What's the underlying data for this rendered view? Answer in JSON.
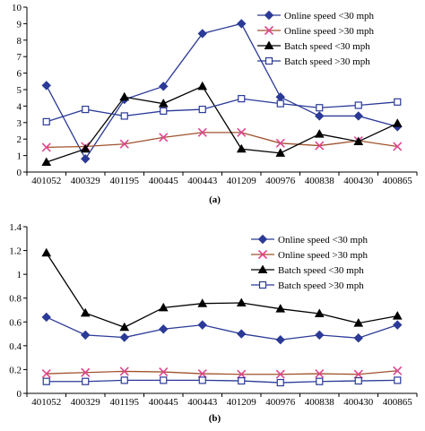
{
  "chart_data": [
    {
      "type": "line",
      "caption": "(a)",
      "categories": [
        "401052",
        "400329",
        "401195",
        "400445",
        "400443",
        "401209",
        "400976",
        "400838",
        "400430",
        "400865"
      ],
      "ylim": [
        0,
        10
      ],
      "yticks": [
        0,
        1,
        2,
        3,
        4,
        5,
        6,
        7,
        8,
        9,
        10
      ],
      "ytick_labels": [
        "0",
        "1",
        "2",
        "3",
        "4",
        "5",
        "6",
        "7",
        "8",
        "9",
        "10"
      ],
      "legend_position": "top-right",
      "grid": false,
      "series": [
        {
          "name": "Online speed <30 mph",
          "color": "#2b3a97",
          "marker": "diamond",
          "values": [
            5.25,
            0.8,
            4.4,
            5.2,
            8.4,
            9.0,
            4.55,
            3.4,
            3.4,
            2.75
          ]
        },
        {
          "name": "Online speed >30 mph",
          "color": "#a0522d",
          "marker": "x",
          "marker_color": "#e0458f",
          "values": [
            1.5,
            1.55,
            1.7,
            2.1,
            2.4,
            2.4,
            1.75,
            1.6,
            1.9,
            1.55
          ]
        },
        {
          "name": "Batch speed <30 mph",
          "color": "#000000",
          "marker": "triangle",
          "values": [
            0.6,
            1.4,
            4.55,
            4.15,
            5.2,
            1.4,
            1.15,
            2.3,
            1.85,
            2.95
          ]
        },
        {
          "name": "Batch speed >30 mph",
          "color": "#2b3a97",
          "marker": "square-open",
          "values": [
            3.05,
            3.8,
            3.4,
            3.7,
            3.8,
            4.45,
            4.15,
            3.9,
            4.05,
            4.25
          ]
        }
      ]
    },
    {
      "type": "line",
      "caption": "(b)",
      "categories": [
        "401052",
        "400329",
        "401195",
        "400445",
        "400443",
        "401209",
        "400976",
        "400838",
        "400430",
        "400865"
      ],
      "ylim": [
        0,
        1.4
      ],
      "yticks": [
        0,
        0.2,
        0.4,
        0.6,
        0.8,
        1.0,
        1.2,
        1.4
      ],
      "ytick_labels": [
        "0",
        "0.2",
        "0.4",
        "0.6",
        "0.8",
        "1",
        "1.2",
        "1.4"
      ],
      "legend_position": "top-right",
      "grid": false,
      "series": [
        {
          "name": "Online speed <30 mph",
          "color": "#2b3a97",
          "marker": "diamond",
          "values": [
            0.64,
            0.49,
            0.47,
            0.54,
            0.575,
            0.5,
            0.45,
            0.49,
            0.465,
            0.575
          ]
        },
        {
          "name": "Online speed >30 mph",
          "color": "#a0522d",
          "marker": "x",
          "marker_color": "#e0458f",
          "values": [
            0.165,
            0.175,
            0.185,
            0.18,
            0.165,
            0.16,
            0.16,
            0.165,
            0.16,
            0.19
          ]
        },
        {
          "name": "Batch speed <30 mph",
          "color": "#000000",
          "marker": "triangle",
          "values": [
            1.18,
            0.675,
            0.555,
            0.72,
            0.755,
            0.76,
            0.71,
            0.67,
            0.59,
            0.65
          ]
        },
        {
          "name": "Batch speed >30 mph",
          "color": "#2b3a97",
          "marker": "square-open",
          "values": [
            0.1,
            0.1,
            0.11,
            0.11,
            0.11,
            0.105,
            0.09,
            0.1,
            0.105,
            0.11
          ]
        }
      ]
    }
  ]
}
